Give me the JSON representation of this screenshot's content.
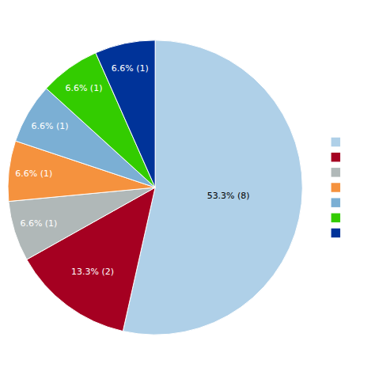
{
  "chart_data": {
    "type": "pie",
    "values": [
      53.3,
      13.3,
      6.6,
      6.6,
      6.6,
      6.6,
      6.6
    ],
    "value_labels": [
      "53.3% (8)",
      "13.3% (2)",
      "6.6% (1)",
      "6.6% (1)",
      "6.6% (1)",
      "6.6% (1)",
      "6.6% (1)"
    ],
    "colors": [
      "#afd0e8",
      "#a50021",
      "#b0b8b8",
      "#f5923e",
      "#7bafd4",
      "#33cc00",
      "#003399"
    ],
    "data_labels": true,
    "legend": "right"
  }
}
